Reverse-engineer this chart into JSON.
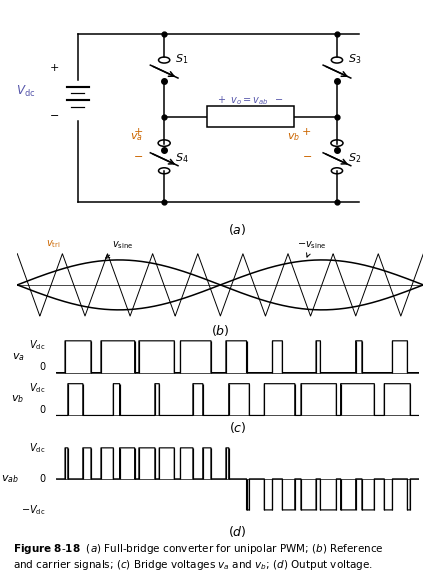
{
  "fig_width": 4.32,
  "fig_height": 5.84,
  "dpi": 100,
  "bg_color": "#ffffff",
  "lw": 1.1,
  "switch_circle_r": 0.13,
  "dot_ms": 3.5,
  "mf": 9,
  "ma": 0.8,
  "label_blue": "#5555aa",
  "label_orange": "#cc6600",
  "signal_lw": 0.8,
  "tri_lw": 0.7,
  "sine_lw": 1.1
}
